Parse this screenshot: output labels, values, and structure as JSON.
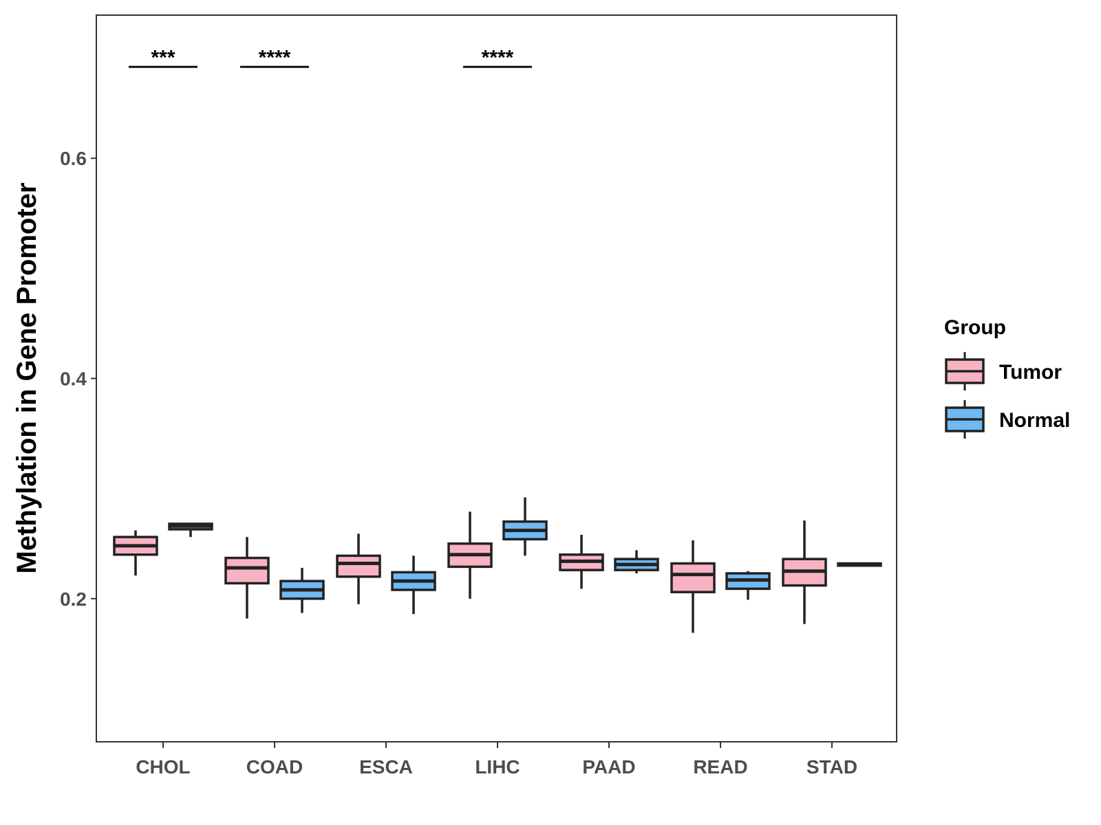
{
  "chart_data": {
    "type": "boxplot",
    "title": "",
    "xlabel": "",
    "ylabel": "Methylation in Gene Promoter",
    "ylim": [
      0.07,
      0.73
    ],
    "yticks": [
      0.2,
      0.4,
      0.6
    ],
    "ytick_labels": [
      "0.2",
      "0.4",
      "0.6"
    ],
    "grid": false,
    "legend_position": "right",
    "categories": [
      "CHOL",
      "COAD",
      "ESCA",
      "LIHC",
      "PAAD",
      "READ",
      "STAD"
    ],
    "legend": {
      "title": "Group",
      "items": [
        {
          "name": "Tumor",
          "color": "#f8b3c3"
        },
        {
          "name": "Normal",
          "color": "#70b9f3"
        }
      ]
    },
    "series": [
      {
        "name": "Tumor",
        "color": "#f8b3c3",
        "boxes": [
          {
            "category": "CHOL",
            "whisker_low": 0.221,
            "q1": 0.24,
            "median": 0.248,
            "q3": 0.256,
            "whisker_high": 0.262
          },
          {
            "category": "COAD",
            "whisker_low": 0.182,
            "q1": 0.214,
            "median": 0.228,
            "q3": 0.237,
            "whisker_high": 0.256
          },
          {
            "category": "ESCA",
            "whisker_low": 0.195,
            "q1": 0.22,
            "median": 0.232,
            "q3": 0.239,
            "whisker_high": 0.259
          },
          {
            "category": "LIHC",
            "whisker_low": 0.2,
            "q1": 0.229,
            "median": 0.24,
            "q3": 0.25,
            "whisker_high": 0.279
          },
          {
            "category": "PAAD",
            "whisker_low": 0.209,
            "q1": 0.226,
            "median": 0.234,
            "q3": 0.24,
            "whisker_high": 0.258
          },
          {
            "category": "READ",
            "whisker_low": 0.169,
            "q1": 0.206,
            "median": 0.222,
            "q3": 0.232,
            "whisker_high": 0.253
          },
          {
            "category": "STAD",
            "whisker_low": 0.177,
            "q1": 0.212,
            "median": 0.225,
            "q3": 0.236,
            "whisker_high": 0.271
          }
        ]
      },
      {
        "name": "Normal",
        "color": "#70b9f3",
        "boxes": [
          {
            "category": "CHOL",
            "whisker_low": 0.256,
            "q1": 0.263,
            "median": 0.266,
            "q3": 0.268,
            "whisker_high": 0.268
          },
          {
            "category": "COAD",
            "whisker_low": 0.187,
            "q1": 0.2,
            "median": 0.208,
            "q3": 0.216,
            "whisker_high": 0.228
          },
          {
            "category": "ESCA",
            "whisker_low": 0.186,
            "q1": 0.208,
            "median": 0.216,
            "q3": 0.224,
            "whisker_high": 0.239
          },
          {
            "category": "LIHC",
            "whisker_low": 0.239,
            "q1": 0.254,
            "median": 0.262,
            "q3": 0.27,
            "whisker_high": 0.292
          },
          {
            "category": "PAAD",
            "whisker_low": 0.223,
            "q1": 0.226,
            "median": 0.231,
            "q3": 0.236,
            "whisker_high": 0.244
          },
          {
            "category": "READ",
            "whisker_low": 0.199,
            "q1": 0.209,
            "median": 0.217,
            "q3": 0.223,
            "whisker_high": 0.225
          },
          {
            "category": "STAD",
            "whisker_low": 0.23,
            "q1": 0.23,
            "median": 0.231,
            "q3": 0.232,
            "whisker_high": 0.232
          }
        ]
      }
    ],
    "annotations": [
      {
        "category": "CHOL",
        "label": "***",
        "y": 0.683
      },
      {
        "category": "COAD",
        "label": "****",
        "y": 0.683
      },
      {
        "category": "LIHC",
        "label": "****",
        "y": 0.683
      }
    ]
  }
}
